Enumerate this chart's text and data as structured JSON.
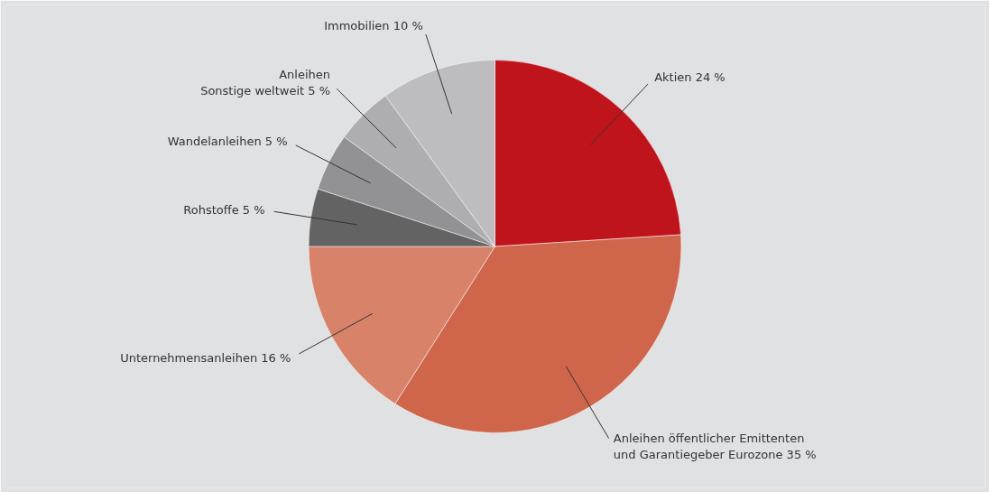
{
  "chart_data": {
    "type": "pie",
    "categories": [
      "Aktien 24 %",
      "Anleihen öffentlicher Emittenten\nund Garantiegeber Eurozone 35 %",
      "Unternehmensanleihen 16 %",
      "Rohstoffe 5 %",
      "Wandelanleihen 5 %",
      "Anleihen\nSonstige weltweit 5 %",
      "Immobilien 10 %"
    ],
    "values": [
      24,
      35,
      16,
      5,
      5,
      5,
      10
    ],
    "colors": [
      "#c0141c",
      "#cf664c",
      "#d8826a",
      "#636363",
      "#929294",
      "#aeaeb0",
      "#bdbdbf"
    ]
  }
}
